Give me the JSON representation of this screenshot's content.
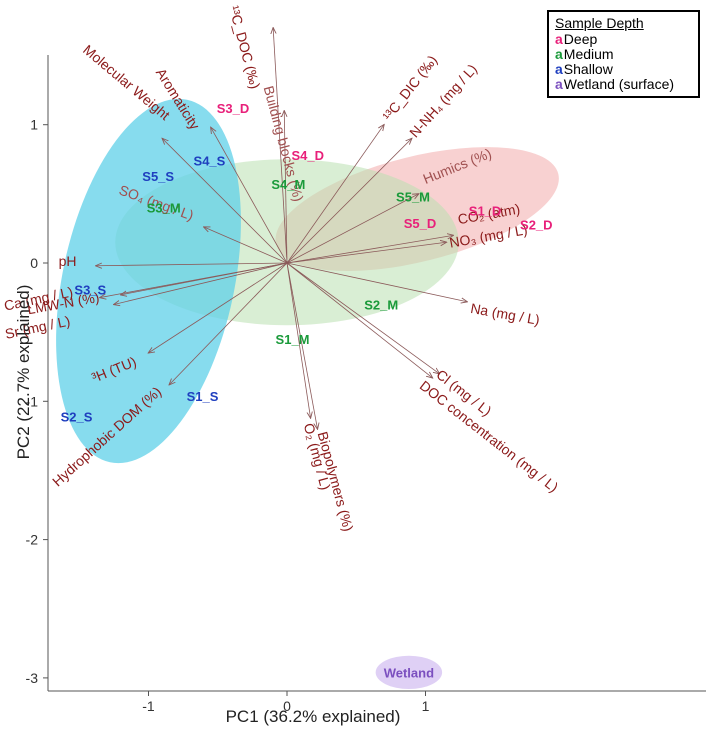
{
  "chart_data": {
    "type": "scatter",
    "subtype": "pca-biplot",
    "xlabel": "PC1 (36.2% explained)",
    "ylabel": "PC2 (22.7% explained)",
    "xlim": [
      -1.7,
      1.9
    ],
    "ylim": [
      -3.15,
      1.5
    ],
    "x_ticks": [
      -1,
      0,
      1
    ],
    "y_ticks": [
      -3,
      -2,
      -1,
      0,
      1
    ],
    "grid": false,
    "legend": {
      "title": "Sample Depth",
      "placement": "top-right",
      "key_glyph": "a",
      "entries": [
        {
          "label": "Deep",
          "color": "#e8207a"
        },
        {
          "label": "Medium",
          "color": "#1a9a3a"
        },
        {
          "label": "Shallow",
          "color": "#1f3fbf"
        },
        {
          "label": "Wetland (surface)",
          "color": "#7b4fbf"
        }
      ]
    },
    "groups": [
      {
        "name": "Deep",
        "color": "#f4b3b3",
        "ellipse": {
          "cx": 0.94,
          "cy": 0.39,
          "rx": 1.05,
          "ry": 0.38,
          "angle": -14
        }
      },
      {
        "name": "Medium",
        "color": "#b9e0b0",
        "ellipse": {
          "cx": 0.0,
          "cy": 0.15,
          "rx": 1.24,
          "ry": 0.6,
          "angle": 0
        }
      },
      {
        "name": "Shallow",
        "color": "#5fd0e8",
        "ellipse": {
          "cx": -1.0,
          "cy": -0.13,
          "rx": 0.62,
          "ry": 1.34,
          "angle": 12
        }
      },
      {
        "name": "Wetland",
        "color": "#c9b0ee",
        "ellipse": {
          "cx": 0.88,
          "cy": -2.96,
          "rx": 0.24,
          "ry": 0.12,
          "angle": 0
        }
      }
    ],
    "points": [
      {
        "label": "S3_D",
        "x": -0.39,
        "y": 1.12,
        "group": "Deep"
      },
      {
        "label": "S4_D",
        "x": 0.15,
        "y": 0.78,
        "group": "Deep"
      },
      {
        "label": "S1_D",
        "x": 1.43,
        "y": 0.38,
        "group": "Deep"
      },
      {
        "label": "S5_D",
        "x": 0.96,
        "y": 0.29,
        "group": "Deep"
      },
      {
        "label": "S2_D",
        "x": 1.8,
        "y": 0.28,
        "group": "Deep"
      },
      {
        "label": "S4_M",
        "x": 0.01,
        "y": 0.57,
        "group": "Medium"
      },
      {
        "label": "S5_M",
        "x": 0.91,
        "y": 0.48,
        "group": "Medium"
      },
      {
        "label": "S3_M",
        "x": -0.89,
        "y": 0.4,
        "group": "Medium"
      },
      {
        "label": "S2_M",
        "x": 0.68,
        "y": -0.3,
        "group": "Medium"
      },
      {
        "label": "S1_M",
        "x": 0.04,
        "y": -0.55,
        "group": "Medium"
      },
      {
        "label": "S4_S",
        "x": -0.56,
        "y": 0.74,
        "group": "Shallow"
      },
      {
        "label": "S5_S",
        "x": -0.93,
        "y": 0.63,
        "group": "Shallow"
      },
      {
        "label": "S3_S",
        "x": -1.42,
        "y": -0.19,
        "group": "Shallow"
      },
      {
        "label": "S1_S",
        "x": -0.61,
        "y": -0.96,
        "group": "Shallow"
      },
      {
        "label": "S2_S",
        "x": -1.52,
        "y": -1.11,
        "group": "Shallow"
      },
      {
        "label": "Wetland",
        "x": 0.88,
        "y": -2.96,
        "group": "Wetland"
      }
    ],
    "loadings": [
      {
        "label": "¹³C_DOC (‰)",
        "x": -0.1,
        "y": 1.7,
        "label_x": -0.42,
        "label_y": 1.85,
        "angle": 75
      },
      {
        "label": "Molecular Weight",
        "x": -0.9,
        "y": 0.9,
        "label_x": -1.48,
        "label_y": 1.53,
        "angle": 40
      },
      {
        "label": "Aromaticity",
        "x": -0.55,
        "y": 0.98,
        "label_x": -0.95,
        "label_y": 1.38,
        "angle": 58
      },
      {
        "label": "Building blocks (%)",
        "x": -0.02,
        "y": 1.1,
        "label_x": -0.17,
        "label_y": 1.27,
        "angle": 75,
        "faint": true
      },
      {
        "label": "¹³C_DIC (‰)",
        "x": 0.7,
        "y": 1.0,
        "label_x": 0.74,
        "label_y": 1.02,
        "angle": -52
      },
      {
        "label": "N-NH₄ (mg / L)",
        "x": 0.9,
        "y": 0.9,
        "label_x": 0.93,
        "label_y": 0.9,
        "angle": -48
      },
      {
        "label": "Humics (%)",
        "x": 0.95,
        "y": 0.5,
        "label_x": 1.0,
        "label_y": 0.57,
        "angle": -22,
        "faint": true
      },
      {
        "label": "CO₂ (atm)",
        "x": 1.2,
        "y": 0.2,
        "label_x": 1.24,
        "label_y": 0.28,
        "angle": -10
      },
      {
        "label": "NO₃ (mg / L)",
        "x": 1.15,
        "y": 0.15,
        "label_x": 1.18,
        "label_y": 0.11,
        "angle": -10
      },
      {
        "label": "Na (mg / L)",
        "x": 1.3,
        "y": -0.28,
        "label_x": 1.32,
        "label_y": -0.36,
        "angle": 10
      },
      {
        "label": "Cl (mg / L)",
        "x": 1.1,
        "y": -0.8,
        "label_x": 1.07,
        "label_y": -0.82,
        "angle": 38
      },
      {
        "label": "DOC concentration (mg / L)",
        "x": 1.05,
        "y": -0.83,
        "label_x": 0.95,
        "label_y": -0.9,
        "angle": 38
      },
      {
        "label": "Biopolymers (%)",
        "x": 0.22,
        "y": -1.2,
        "label_x": 0.22,
        "label_y": -1.23,
        "angle": 75
      },
      {
        "label": "O₂ (mg / L)",
        "x": 0.17,
        "y": -1.12,
        "label_x": 0.12,
        "label_y": -1.17,
        "angle": 75
      },
      {
        "label": "pH",
        "x": -1.38,
        "y": -0.02,
        "label_x": -1.52,
        "label_y": -0.02,
        "angle": 0,
        "anchor": "end"
      },
      {
        "label": "SO₄ (mg / L)",
        "x": -0.6,
        "y": 0.26,
        "label_x": -1.22,
        "label_y": 0.5,
        "angle": 20,
        "faint": true
      },
      {
        "label": "Ca (mg / L)",
        "x": -1.35,
        "y": -0.25,
        "label_x": -1.54,
        "label_y": -0.24,
        "angle": -12,
        "anchor": "end"
      },
      {
        "label": "LMW-N (%)",
        "x": -1.2,
        "y": -0.23,
        "label_x": -1.35,
        "label_y": -0.28,
        "angle": -10,
        "anchor": "end"
      },
      {
        "label": "Sr (mg / L)",
        "x": -1.25,
        "y": -0.3,
        "label_x": -1.56,
        "label_y": -0.45,
        "angle": -12,
        "anchor": "end"
      },
      {
        "label": "³H (TU)",
        "x": -1.0,
        "y": -0.65,
        "label_x": -1.08,
        "label_y": -0.74,
        "angle": -22,
        "anchor": "end"
      },
      {
        "label": "Hydrophobic DOM (%)",
        "x": -0.85,
        "y": -0.88,
        "label_x": -0.9,
        "label_y": -0.94,
        "angle": -42,
        "anchor": "end"
      }
    ]
  }
}
